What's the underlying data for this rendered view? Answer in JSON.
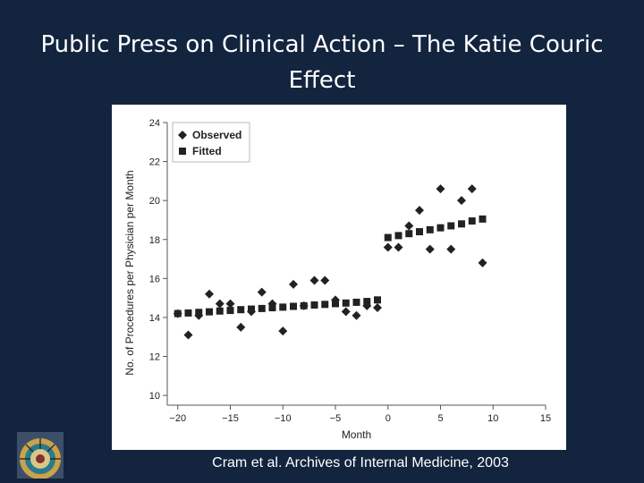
{
  "slide": {
    "title": "Public Press on Clinical Action – The Katie Couric Effect",
    "citation": "Cram et al. Archives of Internal Medicine, 2003"
  },
  "colors": {
    "background": "#13243f",
    "marker": "#222222",
    "text": "#ffffff"
  },
  "logo": {
    "icon": "institution-seal-icon"
  },
  "chart_data": {
    "type": "scatter",
    "title": "",
    "xlabel": "Month",
    "ylabel": "No. of Procedures per Physician per Month",
    "xlim": [
      -21,
      15
    ],
    "ylim": [
      9.5,
      24
    ],
    "x_ticks": [
      -20,
      -15,
      -10,
      -5,
      0,
      5,
      10,
      15
    ],
    "y_ticks": [
      10,
      12,
      14,
      16,
      18,
      20,
      22,
      24
    ],
    "grid": false,
    "legend": "top-left",
    "series": [
      {
        "name": "Observed",
        "marker": "diamond",
        "points": [
          [
            -20,
            14.2
          ],
          [
            -19,
            13.1
          ],
          [
            -18,
            14.1
          ],
          [
            -17,
            15.2
          ],
          [
            -16,
            14.7
          ],
          [
            -15,
            14.7
          ],
          [
            -14,
            13.5
          ],
          [
            -13,
            14.3
          ],
          [
            -12,
            15.3
          ],
          [
            -11,
            14.7
          ],
          [
            -10,
            13.3
          ],
          [
            -9,
            15.7
          ],
          [
            -8,
            14.6
          ],
          [
            -7,
            15.9
          ],
          [
            -6,
            15.9
          ],
          [
            -5,
            14.9
          ],
          [
            -4,
            14.3
          ],
          [
            -3,
            14.1
          ],
          [
            -2,
            14.6
          ],
          [
            -1,
            14.5
          ],
          [
            0,
            17.6
          ],
          [
            1,
            17.6
          ],
          [
            2,
            18.7
          ],
          [
            3,
            19.5
          ],
          [
            4,
            17.5
          ],
          [
            5,
            20.6
          ],
          [
            6,
            17.5
          ],
          [
            7,
            20.0
          ],
          [
            8,
            20.6
          ],
          [
            9,
            16.8
          ]
        ]
      },
      {
        "name": "Fitted",
        "marker": "square",
        "points": [
          [
            -20,
            14.2
          ],
          [
            -19,
            14.23
          ],
          [
            -18,
            14.26
          ],
          [
            -17,
            14.29
          ],
          [
            -16,
            14.33
          ],
          [
            -15,
            14.36
          ],
          [
            -14,
            14.4
          ],
          [
            -13,
            14.43
          ],
          [
            -12,
            14.46
          ],
          [
            -11,
            14.5
          ],
          [
            -10,
            14.53
          ],
          [
            -9,
            14.57
          ],
          [
            -8,
            14.6
          ],
          [
            -7,
            14.64
          ],
          [
            -6,
            14.67
          ],
          [
            -5,
            14.71
          ],
          [
            -4,
            14.74
          ],
          [
            -3,
            14.78
          ],
          [
            -2,
            14.82
          ],
          [
            -1,
            14.9
          ],
          [
            0,
            18.1
          ],
          [
            1,
            18.2
          ],
          [
            2,
            18.3
          ],
          [
            3,
            18.4
          ],
          [
            4,
            18.5
          ],
          [
            5,
            18.6
          ],
          [
            6,
            18.7
          ],
          [
            7,
            18.8
          ],
          [
            8,
            18.95
          ],
          [
            9,
            19.05
          ]
        ]
      }
    ]
  }
}
